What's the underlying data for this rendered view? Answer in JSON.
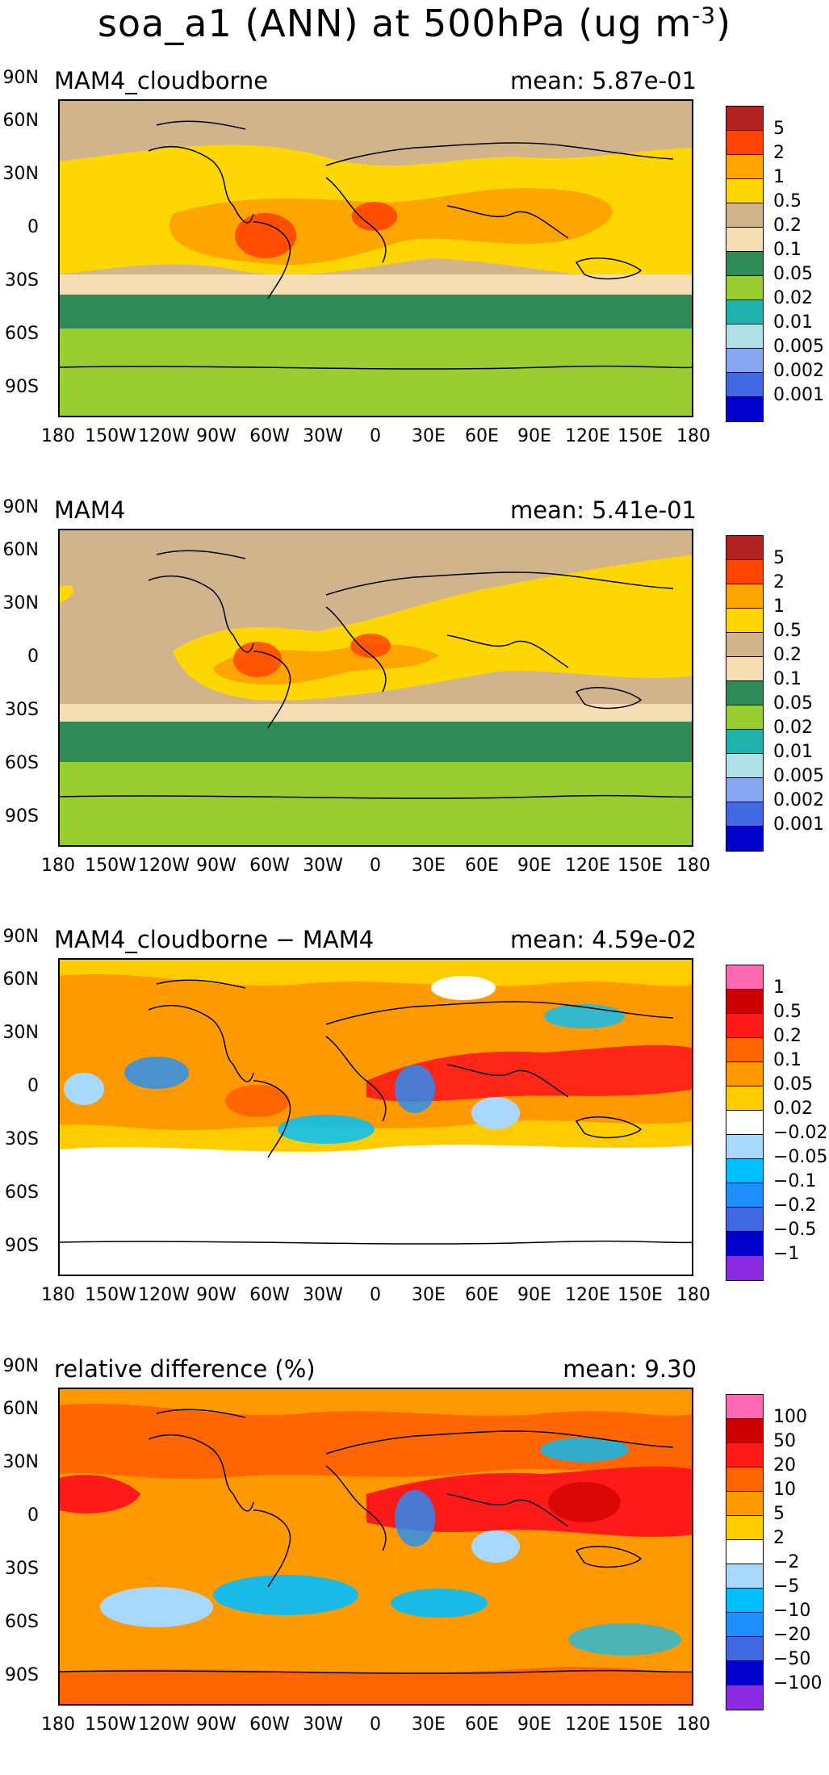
{
  "title": "soa_a1 (ANN) at 500hPa (ug m",
  "title_exp": "-3",
  "title_close": ")",
  "lat_labels": [
    "90N",
    "60N",
    "30N",
    "0",
    "30S",
    "60S",
    "90S"
  ],
  "lon_labels": [
    "180",
    "150W",
    "120W",
    "90W",
    "60W",
    "30W",
    "0",
    "30E",
    "60E",
    "90E",
    "120E",
    "150E",
    "180"
  ],
  "panels": [
    {
      "name": "MAM4_cloudborne",
      "mean": "mean: 5.87e-01",
      "levels": [
        "5",
        "2",
        "1",
        "0.5",
        "0.2",
        "0.1",
        "0.05",
        "0.02",
        "0.01",
        "0.005",
        "0.002",
        "0.001"
      ],
      "colors": [
        "#B22222",
        "#FF4500",
        "#FFA500",
        "#FFD700",
        "#D2B48C",
        "#F5DEB3",
        "#2E8B57",
        "#9ACD32",
        "#20B2AA",
        "#B0E0E6",
        "#87A8F0",
        "#4169E1",
        "#0000CD"
      ]
    },
    {
      "name": "MAM4",
      "mean": "mean: 5.41e-01",
      "levels": [
        "5",
        "2",
        "1",
        "0.5",
        "0.2",
        "0.1",
        "0.05",
        "0.02",
        "0.01",
        "0.005",
        "0.002",
        "0.001"
      ],
      "colors": [
        "#B22222",
        "#FF4500",
        "#FFA500",
        "#FFD700",
        "#D2B48C",
        "#F5DEB3",
        "#2E8B57",
        "#9ACD32",
        "#20B2AA",
        "#B0E0E6",
        "#87A8F0",
        "#4169E1",
        "#0000CD"
      ]
    },
    {
      "name": "MAM4_cloudborne − MAM4",
      "mean": "mean: 4.59e-02",
      "levels": [
        "1",
        "0.5",
        "0.2",
        "0.1",
        "0.05",
        "0.02",
        "−0.02",
        "−0.05",
        "−0.1",
        "−0.2",
        "−0.5",
        "−1"
      ],
      "colors": [
        "#FF69B4",
        "#CC0000",
        "#FF1A1A",
        "#FF6600",
        "#FF9900",
        "#FFCC00",
        "#FFFFFF",
        "#A8D8FF",
        "#00BFFF",
        "#1E90FF",
        "#4169E1",
        "#0000CD",
        "#8A2BE2"
      ]
    },
    {
      "name": "relative difference (%)",
      "mean": "mean:  9.30",
      "levels": [
        "100",
        "50",
        "20",
        "10",
        "5",
        "2",
        "−2",
        "−5",
        "−10",
        "−20",
        "−50",
        "−100"
      ],
      "colors": [
        "#FF69B4",
        "#CC0000",
        "#FF1A1A",
        "#FF6600",
        "#FF9900",
        "#FFCC00",
        "#FFFFFF",
        "#A8D8FF",
        "#00BFFF",
        "#1E90FF",
        "#4169E1",
        "#0000CD",
        "#8A2BE2"
      ]
    }
  ]
}
